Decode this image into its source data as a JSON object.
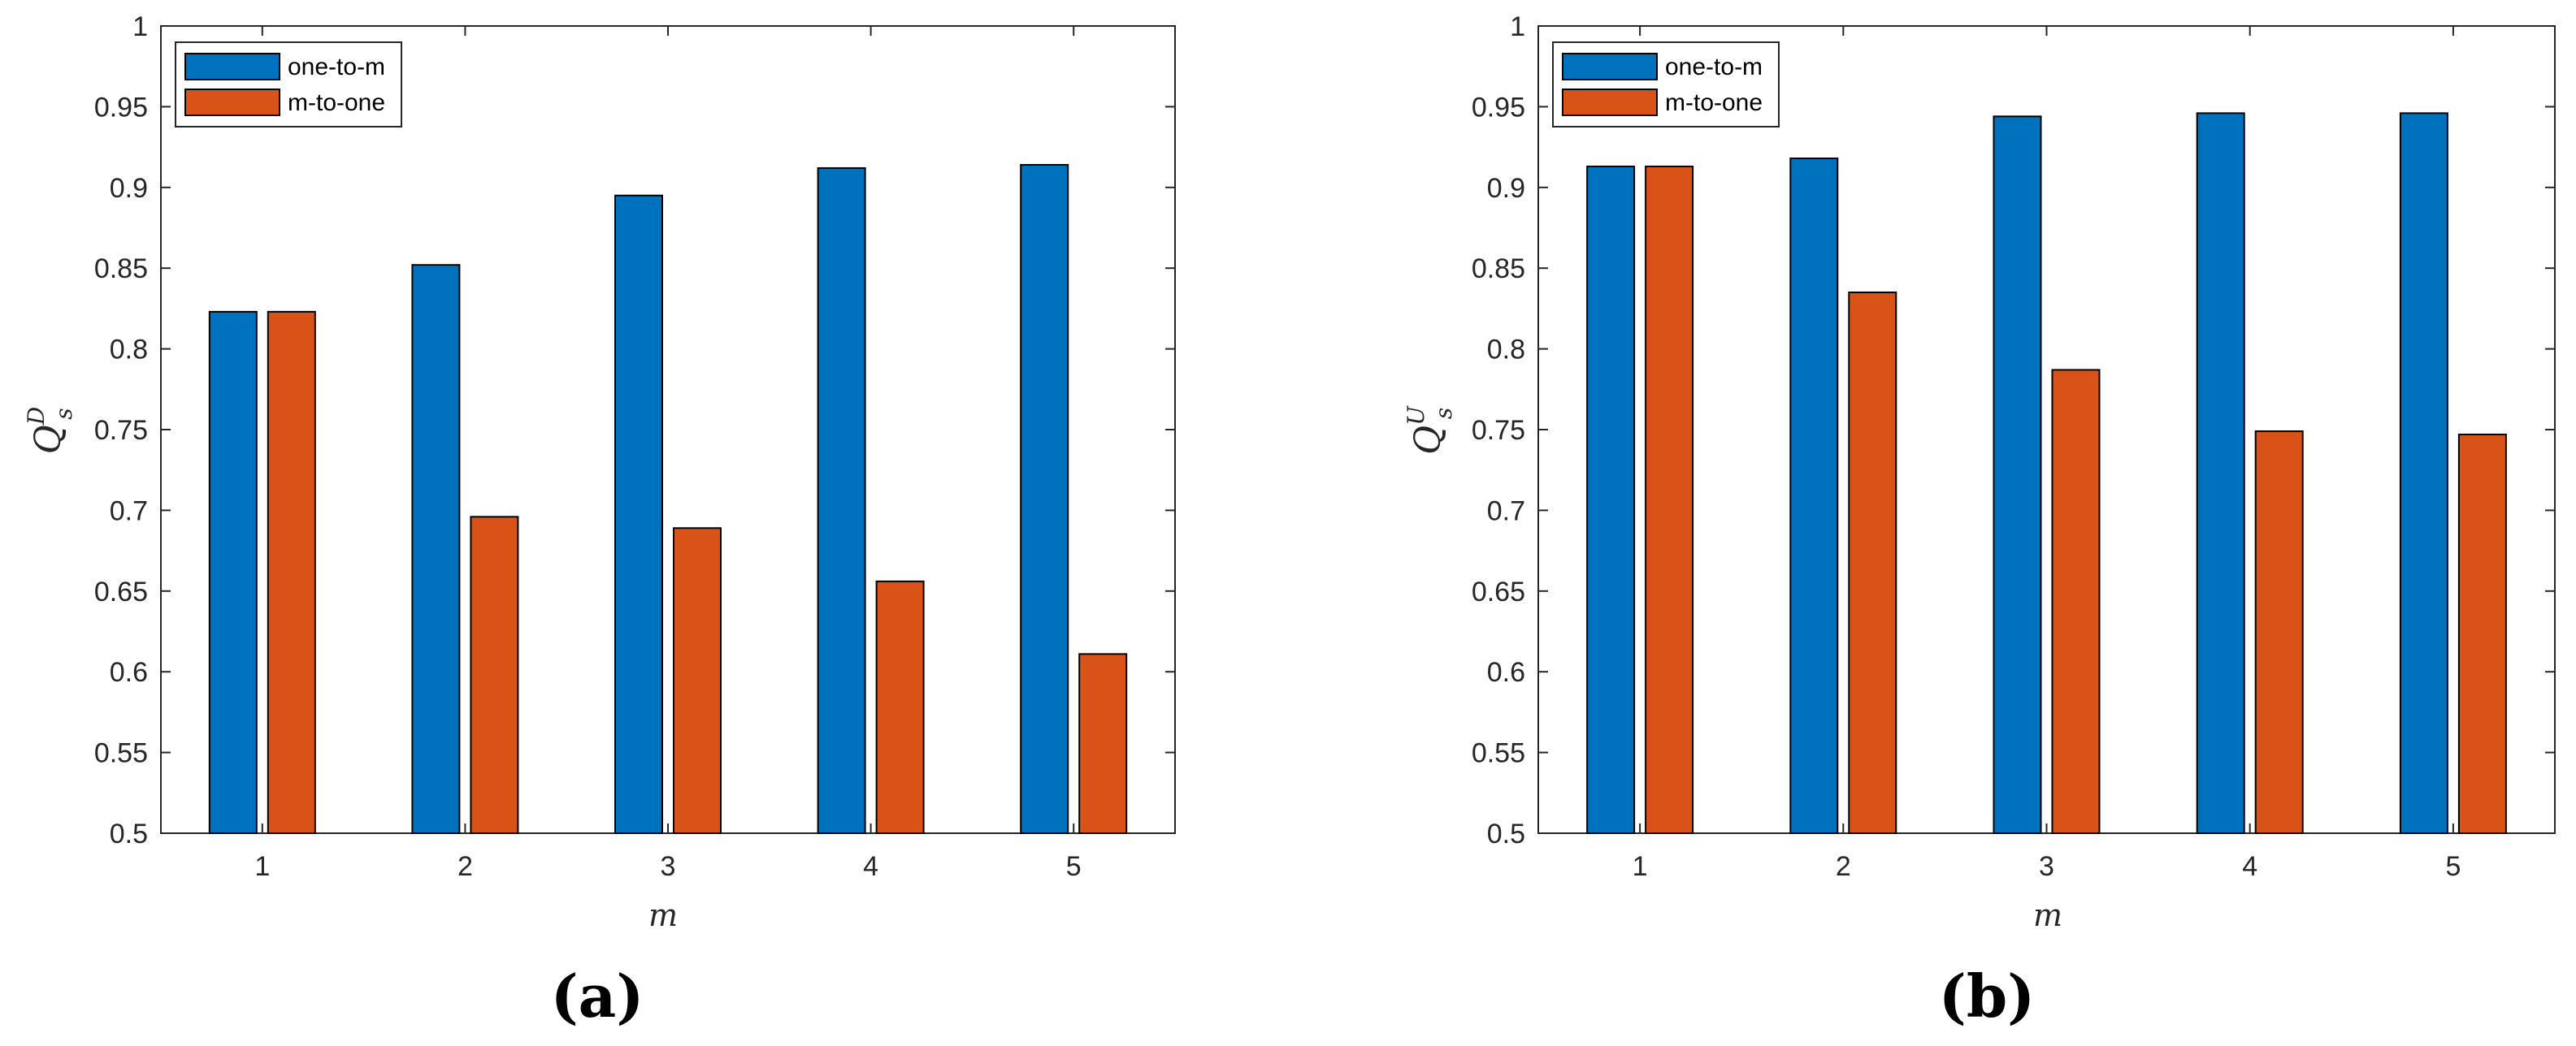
{
  "chart_data": [
    {
      "type": "bar",
      "panel_label": "(a)",
      "categories": [
        "1",
        "2",
        "3",
        "4",
        "5"
      ],
      "series": [
        {
          "name": "one-to-m",
          "color": "#0072BD",
          "values": [
            0.823,
            0.852,
            0.895,
            0.912,
            0.914
          ]
        },
        {
          "name": "m-to-one",
          "color": "#D95319",
          "values": [
            0.823,
            0.696,
            0.689,
            0.656,
            0.611
          ]
        }
      ],
      "xlabel": "m",
      "ylabel": {
        "base": "Q",
        "superscript": "D",
        "subscript": "s"
      },
      "ylim": [
        0.5,
        1
      ],
      "yticks": [
        "0.5",
        "0.55",
        "0.6",
        "0.65",
        "0.7",
        "0.75",
        "0.8",
        "0.85",
        "0.9",
        "0.95",
        "1"
      ],
      "grid": false,
      "legend_position": "top-left"
    },
    {
      "type": "bar",
      "panel_label": "(b)",
      "categories": [
        "1",
        "2",
        "3",
        "4",
        "5"
      ],
      "series": [
        {
          "name": "one-to-m",
          "color": "#0072BD",
          "values": [
            0.913,
            0.918,
            0.944,
            0.946,
            0.946
          ]
        },
        {
          "name": "m-to-one",
          "color": "#D95319",
          "values": [
            0.913,
            0.835,
            0.787,
            0.749,
            0.747
          ]
        }
      ],
      "xlabel": "m",
      "ylabel": {
        "base": "Q",
        "superscript": "U",
        "subscript": "s"
      },
      "ylim": [
        0.5,
        1
      ],
      "yticks": [
        "0.5",
        "0.55",
        "0.6",
        "0.65",
        "0.7",
        "0.75",
        "0.8",
        "0.85",
        "0.9",
        "0.95",
        "1"
      ],
      "grid": false,
      "legend_position": "top-left"
    }
  ]
}
